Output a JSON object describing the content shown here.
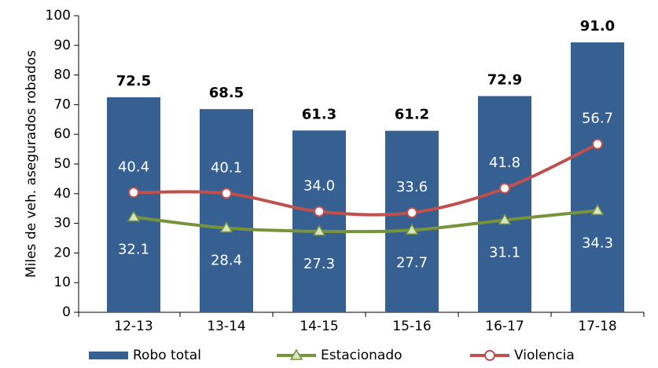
{
  "chart_data": {
    "type": "bar_line",
    "y_label": "Miles de veh. asegurados robados",
    "categories": [
      "12-13",
      "13-14",
      "14-15",
      "15-16",
      "16-17",
      "17-18"
    ],
    "series": [
      {
        "name": "Robo total",
        "type": "bar",
        "color": "#376092",
        "values": [
          72.5,
          68.5,
          61.3,
          61.2,
          72.9,
          91.0
        ],
        "value_labels": [
          "72.5",
          "68.5",
          "61.3",
          "61.2",
          "72.9",
          "91.0"
        ]
      },
      {
        "name": "Estacionado",
        "type": "line",
        "marker": "triangle",
        "color": "#77933c",
        "values": [
          32.1,
          28.4,
          27.3,
          27.7,
          31.1,
          34.3
        ],
        "value_labels": [
          "32.1",
          "28.4",
          "27.3",
          "27.7",
          "31.1",
          "34.3"
        ]
      },
      {
        "name": "Violencia",
        "type": "line",
        "marker": "circle",
        "color": "#c0504d",
        "values": [
          40.4,
          40.1,
          34.0,
          33.6,
          41.8,
          56.7
        ],
        "value_labels": [
          "40.4",
          "40.1",
          "34.0",
          "33.6",
          "41.8",
          "56.7"
        ]
      }
    ],
    "ylim": [
      0,
      100
    ],
    "yticks": [
      0,
      10,
      20,
      30,
      40,
      50,
      60,
      70,
      80,
      90,
      100
    ],
    "legend": "bottom"
  }
}
